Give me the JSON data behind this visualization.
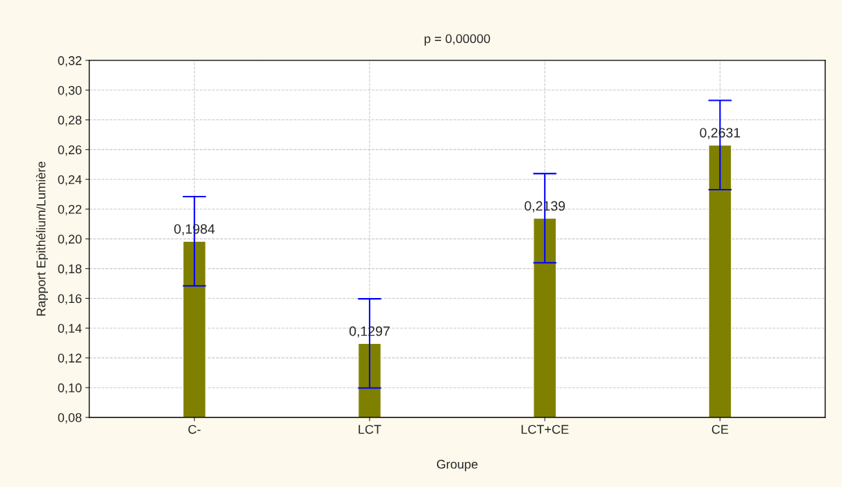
{
  "chart_data": {
    "type": "bar",
    "title": "p = 0,00000",
    "xlabel": "Groupe",
    "ylabel": "Rapport Epithélium/Lumière",
    "categories": [
      "C-",
      "LCT",
      "LCT+CE",
      "CE"
    ],
    "series": [
      {
        "color": "#808000",
        "values": [
          0.1984,
          0.1297,
          0.2139,
          0.2631
        ],
        "errors": [
          0.03,
          0.03,
          0.03,
          0.03
        ],
        "value_labels": [
          "0,1984",
          "0,1297",
          "0,2139",
          "0,2631"
        ]
      }
    ],
    "ylim": [
      0.08,
      0.32
    ],
    "yticks": [
      {
        "value": 0.08,
        "label": "0,08"
      },
      {
        "value": 0.1,
        "label": "0,10"
      },
      {
        "value": 0.12,
        "label": "0,12"
      },
      {
        "value": 0.14,
        "label": "0,14"
      },
      {
        "value": 0.16,
        "label": "0,16"
      },
      {
        "value": 0.18,
        "label": "0,18"
      },
      {
        "value": 0.2,
        "label": "0,20"
      },
      {
        "value": 0.22,
        "label": "0,22"
      },
      {
        "value": 0.24,
        "label": "0,24"
      },
      {
        "value": 0.26,
        "label": "0,26"
      },
      {
        "value": 0.28,
        "label": "0,28"
      },
      {
        "value": 0.3,
        "label": "0,30"
      },
      {
        "value": 0.32,
        "label": "0,32"
      }
    ],
    "grid": true,
    "legend": false
  }
}
